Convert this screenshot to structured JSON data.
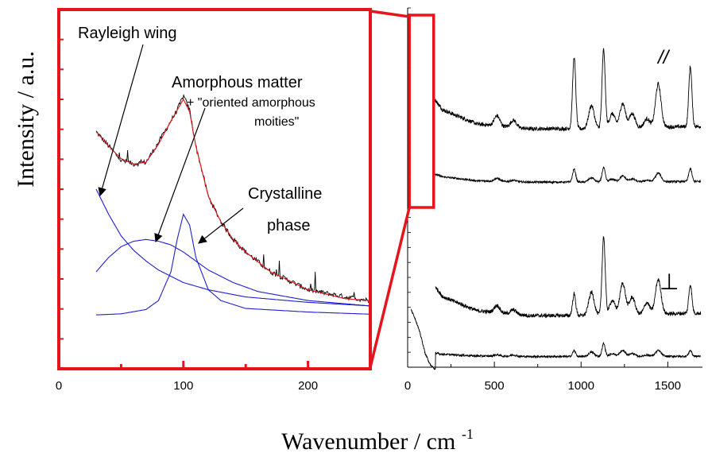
{
  "chart_data": [
    {
      "type": "line",
      "panel": "inset-fit",
      "xlim": [
        0,
        250
      ],
      "x_ticks": [
        "0",
        "100",
        "200"
      ],
      "x_tick_values": [
        0,
        100,
        200
      ],
      "frame_color": "#e8141b",
      "series": [
        {
          "role": "measured",
          "color": "#000000",
          "x": [
            30,
            40,
            50,
            60,
            70,
            80,
            90,
            95,
            100,
            105,
            110,
            120,
            130,
            140,
            150,
            170,
            200,
            230,
            250
          ],
          "y": [
            0.66,
            0.62,
            0.58,
            0.57,
            0.575,
            0.63,
            0.69,
            0.72,
            0.76,
            0.72,
            0.62,
            0.48,
            0.41,
            0.36,
            0.325,
            0.27,
            0.22,
            0.2,
            0.19
          ]
        },
        {
          "role": "fit-sum",
          "color": "#e8141b",
          "x": [
            30,
            40,
            50,
            60,
            70,
            80,
            90,
            95,
            100,
            105,
            110,
            120,
            130,
            140,
            150,
            170,
            200,
            230,
            250
          ],
          "y": [
            0.66,
            0.62,
            0.585,
            0.57,
            0.575,
            0.625,
            0.69,
            0.72,
            0.75,
            0.715,
            0.62,
            0.48,
            0.41,
            0.36,
            0.325,
            0.27,
            0.22,
            0.195,
            0.19
          ]
        },
        {
          "role": "rayleigh-wing",
          "color": "#1f1fd0",
          "x": [
            30,
            40,
            50,
            60,
            70,
            80,
            100,
            120,
            150,
            200,
            250
          ],
          "y": [
            0.5,
            0.43,
            0.37,
            0.33,
            0.3,
            0.275,
            0.24,
            0.22,
            0.2,
            0.185,
            0.175
          ]
        },
        {
          "role": "amorphous",
          "color": "#1f1fd0",
          "x": [
            30,
            40,
            50,
            60,
            70,
            80,
            90,
            100,
            110,
            120,
            140,
            160,
            200,
            250
          ],
          "y": [
            0.27,
            0.31,
            0.34,
            0.355,
            0.36,
            0.355,
            0.345,
            0.325,
            0.3,
            0.275,
            0.24,
            0.215,
            0.19,
            0.175
          ]
        },
        {
          "role": "crystalline",
          "color": "#1f1fd0",
          "x": [
            30,
            50,
            70,
            80,
            90,
            95,
            100,
            105,
            110,
            120,
            130,
            150,
            200,
            250
          ],
          "y": [
            0.15,
            0.153,
            0.165,
            0.19,
            0.27,
            0.36,
            0.43,
            0.4,
            0.31,
            0.22,
            0.19,
            0.168,
            0.158,
            0.152
          ]
        }
      ],
      "annotations": [
        {
          "text": "Rayleigh wing"
        },
        {
          "text": "Amorphous matter"
        },
        {
          "text": "+ \"oriented amorphous"
        },
        {
          "text": "moities\""
        },
        {
          "text": "Crystalline"
        },
        {
          "text": "phase"
        }
      ]
    },
    {
      "type": "line",
      "panel": "full-spectra",
      "xlim": [
        0,
        1700
      ],
      "x_ticks": [
        "0",
        "500",
        "1000",
        "1500"
      ],
      "x_tick_values": [
        0,
        500,
        1000,
        1500
      ],
      "baseline": [
        [
          0,
          0.0
        ],
        [
          50,
          0.0
        ],
        [
          100,
          0.0
        ],
        [
          150,
          -0.8
        ],
        [
          200,
          -1.3
        ],
        [
          400,
          -1.9
        ],
        [
          700,
          -2.1
        ],
        [
          1000,
          -2.1
        ],
        [
          1300,
          -2.05
        ],
        [
          1700,
          -2.0
        ]
      ],
      "peak_positions": [
        515,
        610,
        960,
        1060,
        1130,
        1180,
        1240,
        1295,
        1380,
        1445,
        1630
      ],
      "series": [
        {
          "name": "//",
          "color": "#000000",
          "x_min": 160,
          "amplitude": 1.0,
          "low_freq": [
            [
              20,
              0.6
            ],
            [
              35,
              0.3
            ],
            [
              55,
              0.5
            ],
            [
              75,
              0.15
            ],
            [
              90,
              0.65
            ],
            [
              100,
              0.45
            ],
            [
              115,
              0.2
            ],
            [
              130,
              -0.3
            ],
            [
              150,
              -0.8
            ]
          ],
          "peak_heights": [
            0.07,
            0.05,
            0.5,
            0.16,
            0.55,
            0.1,
            0.17,
            0.1,
            0.06,
            0.3,
            0.42
          ]
        },
        {
          "name": "",
          "color": "#000000",
          "x_min": 160,
          "amplitude": 0.28,
          "low_freq": [],
          "peak_heights": [
            0.02,
            0.01,
            0.09,
            0.03,
            0.1,
            0.02,
            0.04,
            0.02,
            0.01,
            0.06,
            0.09
          ]
        },
        {
          "name": "⊥",
          "color": "#000000",
          "x_min": 160,
          "amplitude": 1.0,
          "low_freq": [],
          "peak_heights": [
            0.05,
            0.03,
            0.15,
            0.16,
            0.55,
            0.1,
            0.22,
            0.12,
            0.08,
            0.24,
            0.2
          ]
        },
        {
          "name": "",
          "color": "#000000",
          "x_min": 20,
          "amplitude": 0.28,
          "low_freq": [
            [
              20,
              1.4
            ],
            [
              40,
              1.1
            ],
            [
              60,
              0.7
            ],
            [
              80,
              0.2
            ],
            [
              100,
              -0.4
            ],
            [
              130,
              -0.9
            ],
            [
              160,
              -1.1
            ]
          ],
          "peak_heights": [
            0.01,
            0.01,
            0.04,
            0.03,
            0.09,
            0.02,
            0.04,
            0.02,
            0.01,
            0.04,
            0.04
          ]
        }
      ]
    }
  ],
  "axes": {
    "ylabel": "Intensity / a.u.",
    "xlabel_main": "Wavenumber / cm",
    "xlabel_sup": "-1"
  }
}
